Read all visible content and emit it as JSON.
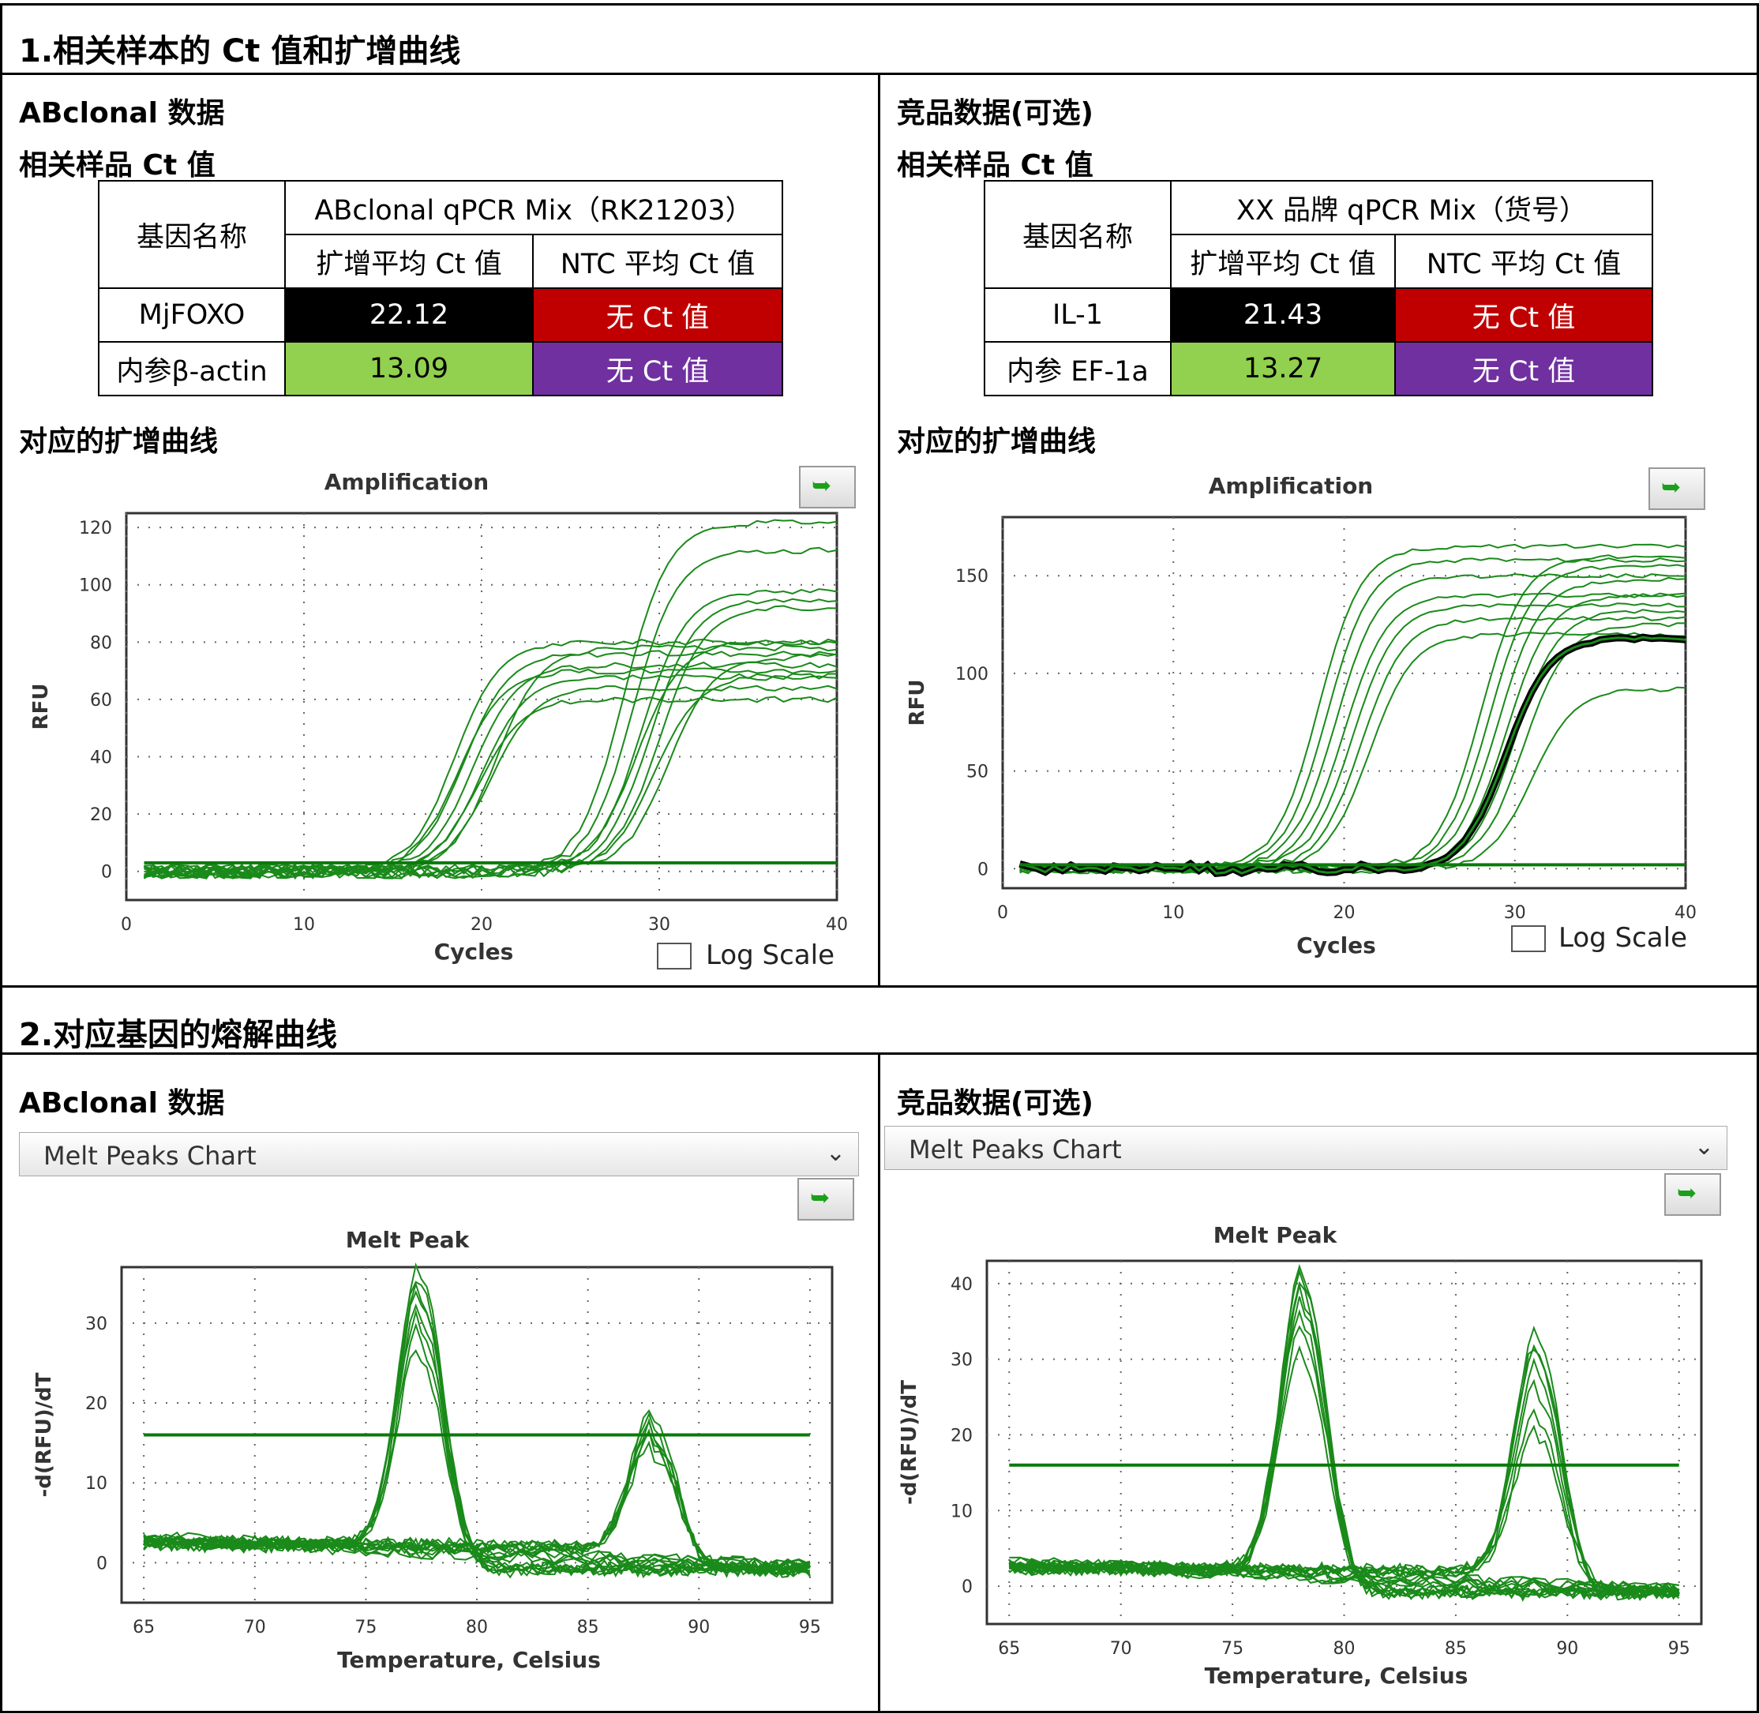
{
  "section1": {
    "title": "1.相关样本的 Ct 值和扩增曲线"
  },
  "section2": {
    "title": "2.对应基因的熔解曲线"
  },
  "left": {
    "header": "ABclonal 数据",
    "ct_header": "相关样品 Ct 值",
    "amp_header": "对应的扩增曲线",
    "table": {
      "col_gene": "基因名称",
      "mix_title": "ABclonal qPCR Mix（RK21203）",
      "col_avg": "扩增平均 Ct 值",
      "col_ntc": "NTC 平均 Ct 值",
      "rows": [
        {
          "gene": "MjFOXO",
          "avg": "22.12",
          "ntc": "无 Ct 值"
        },
        {
          "gene": "内参β-actin",
          "avg": "13.09",
          "ntc": "无 Ct 值"
        }
      ]
    },
    "melt_header": "ABclonal 数据"
  },
  "right": {
    "header": "竞品数据(可选)",
    "ct_header": "相关样品 Ct 值",
    "amp_header": "对应的扩增曲线",
    "table": {
      "col_gene": "基因名称",
      "mix_title": "XX 品牌 qPCR Mix（货号）",
      "col_avg": "扩增平均 Ct 值",
      "col_ntc": "NTC 平均 Ct 值",
      "rows": [
        {
          "gene": "IL-1",
          "avg": "21.43",
          "ntc": "无 Ct 值"
        },
        {
          "gene": "内参 EF-1a",
          "avg": "13.27",
          "ntc": "无 Ct 值"
        }
      ]
    },
    "melt_header": "竞品数据(可选)"
  },
  "colors": {
    "avg_row1": "#000000",
    "ntc_row1": "#c00000",
    "avg_row2": "#92d050",
    "ntc_row2": "#7030a0",
    "curve": "#1a8a1a",
    "threshold": "#0a7a0a"
  },
  "ui": {
    "log_scale": "Log Scale",
    "melt_dropdown": "Melt Peaks Chart",
    "export_icon": "export-arrow-icon"
  },
  "chart_data": [
    {
      "type": "line",
      "title": "Amplification",
      "xlabel": "Cycles",
      "ylabel": "RFU",
      "xlim": [
        0,
        40
      ],
      "ylim": [
        -10,
        125
      ],
      "xticks": [
        0,
        10,
        20,
        30,
        40
      ],
      "yticks": [
        0,
        20,
        40,
        60,
        80,
        100,
        120
      ],
      "grid": true,
      "threshold": 3,
      "series": [
        {
          "ct": 15.0,
          "plateau": 80
        },
        {
          "ct": 15.5,
          "plateau": 76
        },
        {
          "ct": 16.0,
          "plateau": 72
        },
        {
          "ct": 16.5,
          "plateau": 68
        },
        {
          "ct": 17.0,
          "plateau": 64
        },
        {
          "ct": 15.2,
          "plateau": 70
        },
        {
          "ct": 16.3,
          "plateau": 60
        },
        {
          "ct": 17.3,
          "plateau": 78
        },
        {
          "ct": 24.5,
          "plateau": 122
        },
        {
          "ct": 25.0,
          "plateau": 112
        },
        {
          "ct": 25.5,
          "plateau": 98
        },
        {
          "ct": 26.0,
          "plateau": 95
        },
        {
          "ct": 26.5,
          "plateau": 92
        },
        {
          "ct": 25.2,
          "plateau": 80
        },
        {
          "ct": 27.0,
          "plateau": 75
        },
        {
          "ct": 26.2,
          "plateau": 68
        }
      ]
    },
    {
      "type": "line",
      "title": "Amplification",
      "xlabel": "Cycles",
      "ylabel": "RFU",
      "xlim": [
        0,
        40
      ],
      "ylim": [
        -10,
        180
      ],
      "xticks": [
        0,
        10,
        20,
        30,
        40
      ],
      "yticks": [
        0,
        50,
        100,
        150
      ],
      "grid": true,
      "threshold": 2,
      "series": [
        {
          "ct": 15.0,
          "plateau": 165
        },
        {
          "ct": 15.5,
          "plateau": 158
        },
        {
          "ct": 16.0,
          "plateau": 150
        },
        {
          "ct": 16.5,
          "plateau": 140
        },
        {
          "ct": 17.0,
          "plateau": 135
        },
        {
          "ct": 17.5,
          "plateau": 128
        },
        {
          "ct": 18.0,
          "plateau": 120
        },
        {
          "ct": 24.5,
          "plateau": 160
        },
        {
          "ct": 25.0,
          "plateau": 155
        },
        {
          "ct": 25.5,
          "plateau": 148
        },
        {
          "ct": 26.0,
          "plateau": 140
        },
        {
          "ct": 26.5,
          "plateau": 132
        },
        {
          "ct": 27.0,
          "plateau": 125
        },
        {
          "ct": 27.5,
          "plateau": 92
        },
        {
          "ct": 26.0,
          "plateau": 118,
          "highlight": true
        }
      ]
    },
    {
      "type": "line",
      "title": "Melt Peak",
      "xlabel": "Temperature, Celsius",
      "ylabel": "-d(RFU)/dT",
      "xlim": [
        64,
        96
      ],
      "ylim": [
        -5,
        37
      ],
      "xticks": [
        65,
        70,
        75,
        80,
        85,
        90,
        95
      ],
      "yticks": [
        0,
        10,
        20,
        30
      ],
      "grid": true,
      "threshold": 16,
      "peaks": [
        {
          "center": 77.5,
          "heights": [
            36,
            35,
            34,
            33,
            31,
            30,
            28,
            26
          ]
        },
        {
          "center": 88.0,
          "heights": [
            18,
            17,
            16,
            16,
            15,
            15,
            14
          ]
        }
      ]
    },
    {
      "type": "line",
      "title": "Melt Peak",
      "xlabel": "Temperature, Celsius",
      "ylabel": "-d(RFU)/dT",
      "xlim": [
        64,
        96
      ],
      "ylim": [
        -5,
        43
      ],
      "xticks": [
        65,
        70,
        75,
        80,
        85,
        90,
        95
      ],
      "yticks": [
        0,
        10,
        20,
        30,
        40
      ],
      "grid": true,
      "threshold": 16,
      "peaks": [
        {
          "center": 78.2,
          "heights": [
            41,
            40,
            39,
            38,
            37,
            35,
            33,
            30
          ]
        },
        {
          "center": 88.7,
          "heights": [
            33,
            31,
            30,
            28,
            26,
            22,
            20
          ]
        }
      ]
    }
  ]
}
